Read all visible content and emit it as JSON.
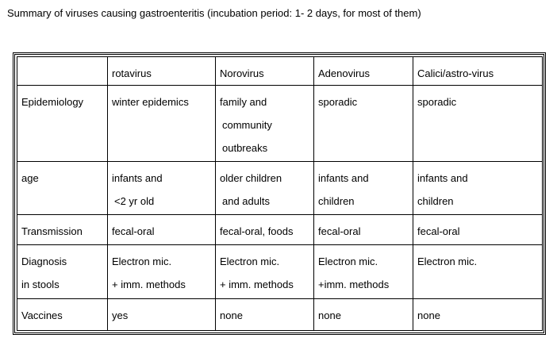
{
  "caption": "Summary of viruses causing gastroenteritis (incubation period: 1- 2 days, for most of them)",
  "table": {
    "header": [
      "",
      "rotavirus",
      "Norovirus",
      "Adenovirus",
      "Calici/astro-virus"
    ],
    "rows": [
      {
        "label": [
          "Epidemiology"
        ],
        "cells": [
          [
            "winter epidemics"
          ],
          [
            "family and",
            "community",
            "outbreaks"
          ],
          [
            "sporadic"
          ],
          [
            "sporadic"
          ]
        ]
      },
      {
        "label": [
          "age"
        ],
        "cells": [
          [
            "infants and",
            "<2 yr old"
          ],
          [
            "older children",
            "and adults"
          ],
          [
            "infants and",
            "children"
          ],
          [
            "infants and",
            "children"
          ]
        ]
      },
      {
        "label": [
          "Transmission"
        ],
        "cells": [
          [
            "fecal-oral"
          ],
          [
            "fecal-oral, foods"
          ],
          [
            "fecal-oral"
          ],
          [
            "fecal-oral"
          ]
        ]
      },
      {
        "label": [
          "Diagnosis",
          "in stools"
        ],
        "cells": [
          [
            "Electron mic.",
            "+ imm. methods"
          ],
          [
            "Electron mic.",
            "+ imm. methods"
          ],
          [
            "Electron mic.",
            "+imm. methods"
          ],
          [
            "Electron mic."
          ]
        ]
      },
      {
        "label": [
          "Vaccines"
        ],
        "cells": [
          [
            "yes"
          ],
          [
            "none"
          ],
          [
            "none"
          ],
          [
            "none"
          ]
        ]
      }
    ]
  }
}
